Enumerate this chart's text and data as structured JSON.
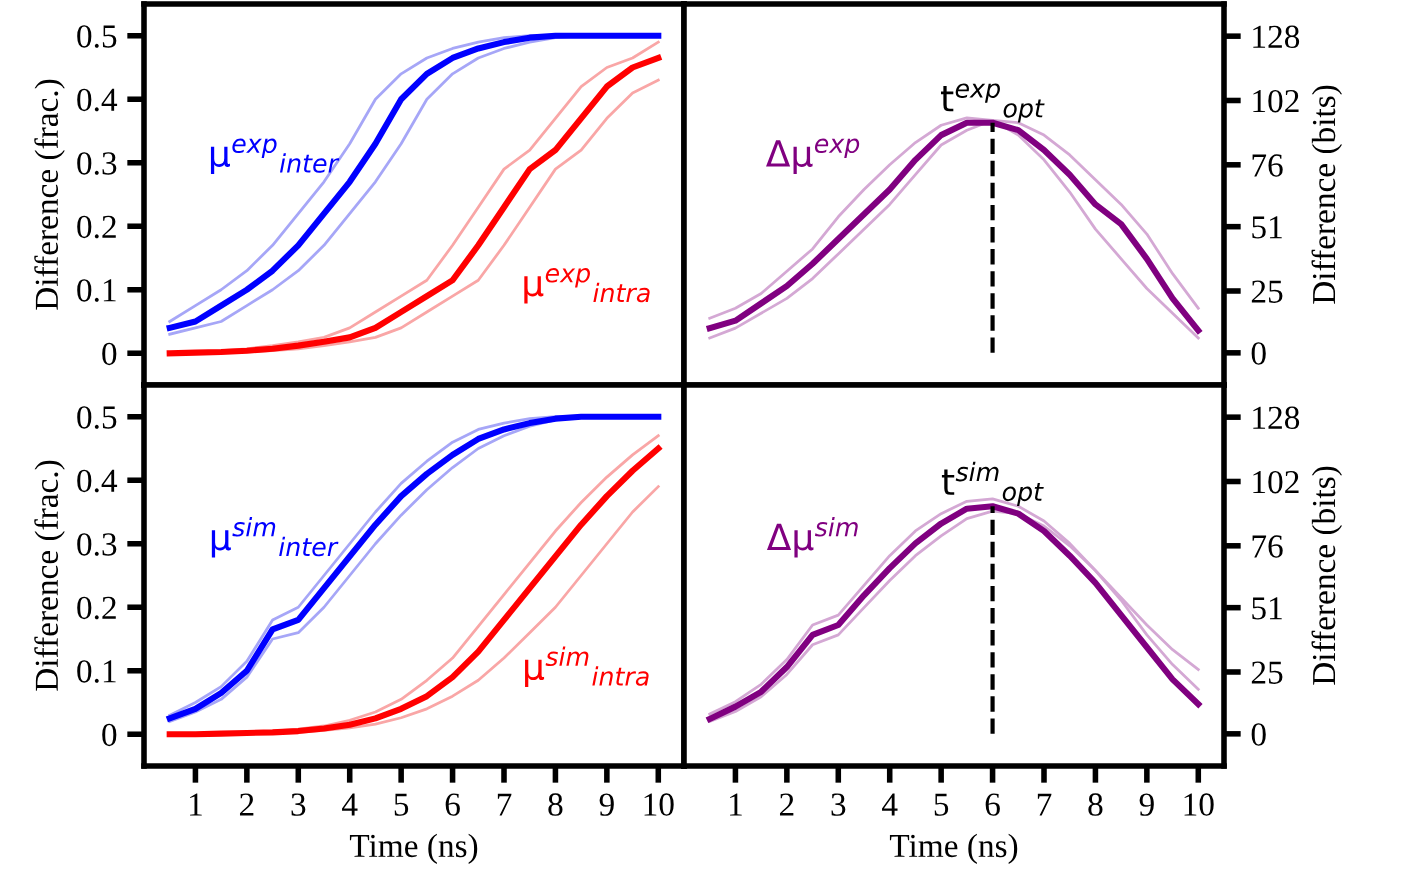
{
  "chart_data": [
    {
      "type": "line",
      "ylabel": "Difference (frac.)",
      "x": [
        0.5,
        1,
        1.5,
        2,
        2.5,
        3,
        3.5,
        4,
        4.5,
        5,
        5.5,
        6,
        6.5,
        7,
        7.5,
        8,
        8.5,
        9,
        9.5,
        10
      ],
      "xlim": [
        0,
        10.5
      ],
      "ylim": [
        -0.05,
        0.55
      ],
      "yticks": [
        {
          "value": 0,
          "label": "0"
        },
        0.1,
        0.2,
        0.3,
        0.4,
        0.5
      ],
      "xticks": [
        1,
        2,
        3,
        4,
        5,
        6,
        7,
        8,
        9,
        10
      ],
      "tick_labels": "y",
      "grid": false,
      "legend": false,
      "series": [
        {
          "color": "#a6a6f7",
          "values": [
            0.05,
            0.075,
            0.1,
            0.13,
            0.17,
            0.22,
            0.27,
            0.33,
            0.4,
            0.44,
            0.465,
            0.48,
            0.49,
            0.497,
            0.5,
            0.5,
            0.5,
            0.5,
            0.5,
            0.5
          ]
        },
        {
          "color": "#a6a6f7",
          "values": [
            0.03,
            0.04,
            0.05,
            0.075,
            0.1,
            0.13,
            0.17,
            0.22,
            0.27,
            0.33,
            0.4,
            0.44,
            0.465,
            0.48,
            0.49,
            0.497,
            0.5,
            0.5,
            0.5,
            0.5
          ]
        },
        {
          "color": "#f9a6a6",
          "values": [
            0.001,
            0.002,
            0.004,
            0.007,
            0.012,
            0.018,
            0.025,
            0.04,
            0.065,
            0.09,
            0.115,
            0.17,
            0.23,
            0.29,
            0.32,
            0.37,
            0.42,
            0.45,
            0.465,
            0.49
          ]
        },
        {
          "color": "#f9a6a6",
          "values": [
            0,
            0,
            0.001,
            0.002,
            0.004,
            0.007,
            0.012,
            0.018,
            0.025,
            0.04,
            0.065,
            0.09,
            0.115,
            0.17,
            0.23,
            0.29,
            0.32,
            0.37,
            0.41,
            0.43
          ]
        },
        {
          "color": "#0000ff",
          "values": [
            0.04,
            0.05,
            0.075,
            0.1,
            0.13,
            0.17,
            0.22,
            0.27,
            0.33,
            0.4,
            0.44,
            0.465,
            0.48,
            0.49,
            0.497,
            0.5,
            0.5,
            0.5,
            0.5,
            0.5
          ]
        },
        {
          "color": "#ff0000",
          "values": [
            0,
            0.001,
            0.002,
            0.004,
            0.007,
            0.012,
            0.018,
            0.025,
            0.04,
            0.065,
            0.09,
            0.115,
            0.17,
            0.23,
            0.29,
            0.32,
            0.37,
            0.42,
            0.45,
            0.465
          ]
        }
      ],
      "annotations": [
        "μ$^{exp}$$_{inter}$",
        "μ$^{exp}$$_{intra}$"
      ]
    },
    {
      "type": "line",
      "ylabel": "Difference (bits)",
      "x": [
        0.5,
        1,
        1.5,
        2,
        2.5,
        3,
        3.5,
        4,
        4.5,
        5,
        5.5,
        6,
        6.5,
        7,
        7.5,
        8,
        8.5,
        9,
        9.5,
        10
      ],
      "xlim": [
        0,
        10.5
      ],
      "ylim": [
        -13,
        141
      ],
      "yticks": [
        0,
        25,
        51,
        76,
        102,
        128
      ],
      "xticks": [
        1,
        2,
        3,
        4,
        5,
        6,
        7,
        8,
        9,
        10
      ],
      "tick_labels": "y",
      "grid": false,
      "legend": false,
      "series": [
        {
          "color": "#d4a8d4",
          "values": [
            14,
            18,
            24,
            33,
            42,
            55,
            66,
            76,
            85,
            92,
            95,
            94,
            88,
            78,
            65,
            50,
            38,
            26,
            16,
            6
          ]
        },
        {
          "color": "#d4a8d4",
          "values": [
            6,
            10,
            16,
            22,
            30,
            40,
            50,
            60,
            72,
            84,
            90,
            94,
            93,
            88,
            80,
            70,
            60,
            48,
            32,
            18
          ]
        },
        {
          "color": "#800080",
          "values": [
            10,
            13,
            20,
            27,
            36,
            46,
            56,
            66,
            78,
            88,
            93,
            93,
            90,
            82,
            72,
            60,
            52,
            38,
            22,
            9
          ]
        }
      ],
      "ref_lines": [
        {
          "axis": "x",
          "value": 6,
          "label": "t$^{exp}$$_{opt}$",
          "color": "#000000",
          "line_style": "dashed"
        }
      ],
      "annotations": [
        "Δμ$^{exp}$"
      ]
    },
    {
      "type": "line",
      "ylabel": "Difference (frac.)",
      "xlabel": "Time (ns)",
      "x": [
        0.5,
        1,
        1.5,
        2,
        2.5,
        3,
        3.5,
        4,
        4.5,
        5,
        5.5,
        6,
        6.5,
        7,
        7.5,
        8,
        8.5,
        9,
        9.5,
        10
      ],
      "xlim": [
        0,
        10.5
      ],
      "ylim": [
        -0.05,
        0.55
      ],
      "yticks": [
        {
          "value": 0,
          "label": "0"
        },
        0.1,
        0.2,
        0.3,
        0.4,
        0.5
      ],
      "xticks": [
        1,
        2,
        3,
        4,
        5,
        6,
        7,
        8,
        9,
        10
      ],
      "grid": false,
      "legend": false,
      "series": [
        {
          "color": "#a6a6f7",
          "values": [
            0.03,
            0.05,
            0.075,
            0.115,
            0.18,
            0.2,
            0.25,
            0.3,
            0.35,
            0.395,
            0.43,
            0.46,
            0.48,
            0.49,
            0.497,
            0.5,
            0.5,
            0.5,
            0.5,
            0.5
          ]
        },
        {
          "color": "#a6a6f7",
          "values": [
            0.02,
            0.035,
            0.055,
            0.09,
            0.15,
            0.16,
            0.2,
            0.25,
            0.3,
            0.345,
            0.385,
            0.42,
            0.45,
            0.47,
            0.485,
            0.495,
            0.5,
            0.5,
            0.5,
            0.5
          ]
        },
        {
          "color": "#f9a6a6",
          "values": [
            0,
            0,
            0.001,
            0.003,
            0.005,
            0.008,
            0.013,
            0.022,
            0.035,
            0.055,
            0.085,
            0.12,
            0.17,
            0.22,
            0.27,
            0.32,
            0.365,
            0.405,
            0.44,
            0.47
          ]
        },
        {
          "color": "#f9a6a6",
          "values": [
            0,
            0,
            0,
            0.001,
            0.002,
            0.003,
            0.006,
            0.01,
            0.016,
            0.026,
            0.04,
            0.06,
            0.085,
            0.12,
            0.16,
            0.2,
            0.25,
            0.3,
            0.35,
            0.39
          ]
        },
        {
          "color": "#0000ff",
          "values": [
            0.025,
            0.04,
            0.065,
            0.1,
            0.165,
            0.18,
            0.23,
            0.28,
            0.33,
            0.375,
            0.41,
            0.44,
            0.465,
            0.48,
            0.49,
            0.497,
            0.5,
            0.5,
            0.5,
            0.5
          ]
        },
        {
          "color": "#ff0000",
          "values": [
            0,
            0,
            0.001,
            0.002,
            0.003,
            0.005,
            0.009,
            0.015,
            0.025,
            0.04,
            0.06,
            0.09,
            0.13,
            0.18,
            0.23,
            0.28,
            0.33,
            0.375,
            0.415,
            0.45
          ]
        }
      ],
      "annotations": [
        "μ$^{sim}$$_{inter}$",
        "μ$^{sim}$$_{intra}$"
      ]
    },
    {
      "type": "line",
      "ylabel": "Difference (bits)",
      "xlabel": "Time (ns)",
      "x": [
        0.5,
        1,
        1.5,
        2,
        2.5,
        3,
        3.5,
        4,
        4.5,
        5,
        5.5,
        6,
        6.5,
        7,
        7.5,
        8,
        8.5,
        9,
        9.5,
        10
      ],
      "xlim": [
        0,
        10.5
      ],
      "ylim": [
        -13,
        141
      ],
      "yticks": [
        0,
        25,
        51,
        76,
        102,
        128
      ],
      "xticks": [
        1,
        2,
        3,
        4,
        5,
        6,
        7,
        8,
        9,
        10
      ],
      "grid": false,
      "legend": false,
      "series": [
        {
          "color": "#d4a8d4",
          "values": [
            8,
            13,
            20,
            30,
            44,
            48,
            60,
            72,
            82,
            89,
            94,
            95,
            92,
            86,
            77,
            66,
            54,
            40,
            28,
            18
          ]
        },
        {
          "color": "#d4a8d4",
          "values": [
            5,
            9,
            15,
            24,
            36,
            40,
            51,
            62,
            72,
            80,
            87,
            90,
            89,
            84,
            76,
            66,
            55,
            44,
            34,
            26
          ]
        },
        {
          "color": "#800080",
          "values": [
            6,
            11,
            17,
            27,
            40,
            44,
            56,
            67,
            77,
            85,
            91,
            92,
            89,
            82,
            72,
            61,
            48,
            35,
            22,
            12
          ]
        }
      ],
      "ref_lines": [
        {
          "axis": "x",
          "value": 6,
          "label": "t$^{sim}$$_{opt}$",
          "color": "#000000",
          "line_style": "dashed"
        }
      ],
      "annotations": [
        "Δμ$^{sim}$"
      ]
    }
  ]
}
